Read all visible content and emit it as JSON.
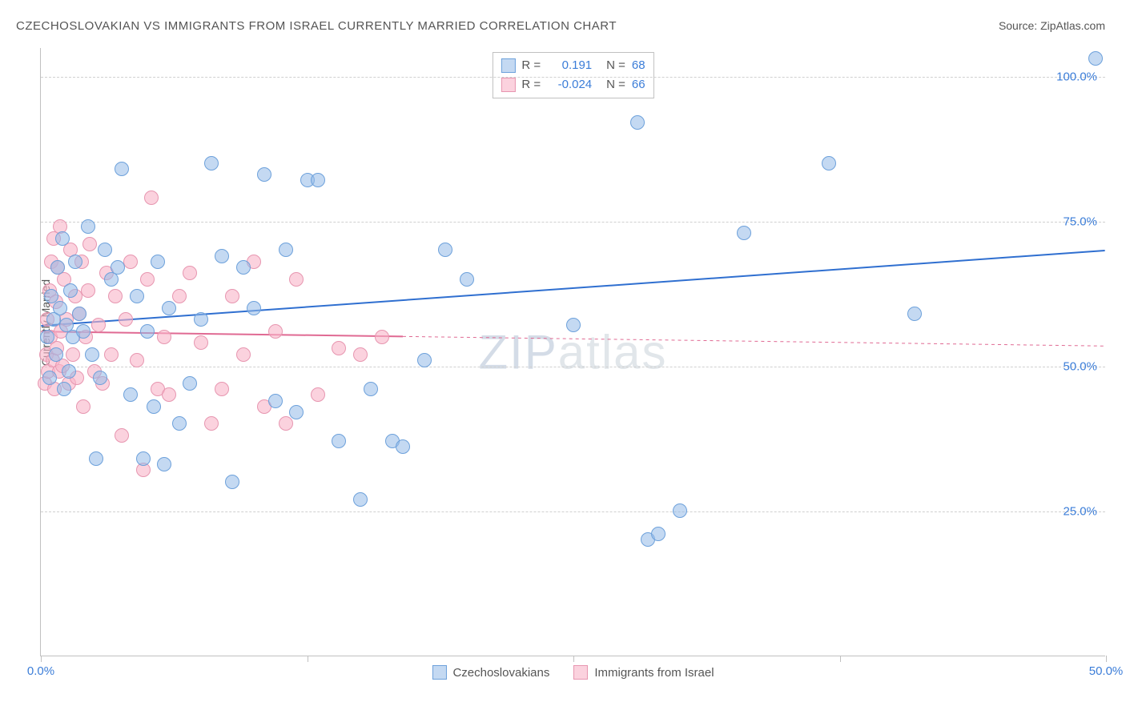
{
  "title": "CZECHOSLOVAKIAN VS IMMIGRANTS FROM ISRAEL CURRENTLY MARRIED CORRELATION CHART",
  "source_label": "Source: ZipAtlas.com",
  "ylabel": "Currently Married",
  "watermark": {
    "zip": "ZIP",
    "atlas": "atlas"
  },
  "chart": {
    "type": "scatter",
    "xlim": [
      0,
      50
    ],
    "ylim": [
      0,
      105
    ],
    "xticks": [
      0,
      12.5,
      25,
      37.5,
      50
    ],
    "xtick_labels": [
      "0.0%",
      "",
      "",
      "",
      "50.0%"
    ],
    "yticks": [
      25,
      50,
      75,
      100
    ],
    "ytick_labels": [
      "25.0%",
      "50.0%",
      "75.0%",
      "100.0%"
    ],
    "ytick_color": "#3b7dd8",
    "grid_color": "#d0d0d0",
    "background_color": "#ffffff",
    "marker_radius": 9,
    "marker_stroke_width": 1.2,
    "trend_line_width": 2
  },
  "series": [
    {
      "name": "Czechoslovakians",
      "fill": "rgba(147,185,232,0.55)",
      "stroke": "#6da1db",
      "trend_color": "#2f6fd0",
      "R": "0.191",
      "N": "68",
      "trend": {
        "x1": 0,
        "y1": 57,
        "x2": 50,
        "y2": 70,
        "solid_to_x": 50
      },
      "points": [
        [
          0.3,
          55
        ],
        [
          0.4,
          48
        ],
        [
          0.5,
          62
        ],
        [
          0.6,
          58
        ],
        [
          0.7,
          52
        ],
        [
          0.8,
          67
        ],
        [
          0.9,
          60
        ],
        [
          1.0,
          72
        ],
        [
          1.1,
          46
        ],
        [
          1.2,
          57
        ],
        [
          1.3,
          49
        ],
        [
          1.4,
          63
        ],
        [
          1.5,
          55
        ],
        [
          1.6,
          68
        ],
        [
          1.8,
          59
        ],
        [
          2.0,
          56
        ],
        [
          2.2,
          74
        ],
        [
          2.4,
          52
        ],
        [
          2.6,
          34
        ],
        [
          2.8,
          48
        ],
        [
          3.0,
          70
        ],
        [
          3.3,
          65
        ],
        [
          3.6,
          67
        ],
        [
          3.8,
          84
        ],
        [
          4.2,
          45
        ],
        [
          4.5,
          62
        ],
        [
          4.8,
          34
        ],
        [
          5.0,
          56
        ],
        [
          5.3,
          43
        ],
        [
          5.5,
          68
        ],
        [
          5.8,
          33
        ],
        [
          6.0,
          60
        ],
        [
          6.5,
          40
        ],
        [
          7.0,
          47
        ],
        [
          7.5,
          58
        ],
        [
          8.0,
          85
        ],
        [
          8.5,
          69
        ],
        [
          9.0,
          30
        ],
        [
          9.5,
          67
        ],
        [
          10.0,
          60
        ],
        [
          10.5,
          83
        ],
        [
          11.0,
          44
        ],
        [
          11.5,
          70
        ],
        [
          12.0,
          42
        ],
        [
          12.5,
          82
        ],
        [
          13.0,
          82
        ],
        [
          14.0,
          37
        ],
        [
          15.0,
          27
        ],
        [
          15.5,
          46
        ],
        [
          16.5,
          37
        ],
        [
          17.0,
          36
        ],
        [
          18.0,
          51
        ],
        [
          19.0,
          70
        ],
        [
          20.0,
          65
        ],
        [
          25.0,
          57
        ],
        [
          28.0,
          92
        ],
        [
          28.5,
          20
        ],
        [
          29.0,
          21
        ],
        [
          30.0,
          25
        ],
        [
          33.0,
          73
        ],
        [
          37.0,
          85
        ],
        [
          41.0,
          59
        ],
        [
          49.5,
          103
        ]
      ]
    },
    {
      "name": "Immigrants from Israel",
      "fill": "rgba(248,180,200,0.6)",
      "stroke": "#e796b0",
      "trend_color": "#e06a93",
      "R": "-0.024",
      "N": "66",
      "trend": {
        "x1": 0,
        "y1": 56,
        "x2": 50,
        "y2": 53.5,
        "solid_to_x": 17
      },
      "points": [
        [
          0.2,
          47
        ],
        [
          0.25,
          52
        ],
        [
          0.3,
          58
        ],
        [
          0.35,
          49
        ],
        [
          0.4,
          63
        ],
        [
          0.45,
          55
        ],
        [
          0.5,
          68
        ],
        [
          0.55,
          51
        ],
        [
          0.6,
          72
        ],
        [
          0.65,
          46
        ],
        [
          0.7,
          61
        ],
        [
          0.75,
          53
        ],
        [
          0.8,
          67
        ],
        [
          0.85,
          49
        ],
        [
          0.9,
          74
        ],
        [
          0.95,
          56
        ],
        [
          1.0,
          50
        ],
        [
          1.1,
          65
        ],
        [
          1.2,
          58
        ],
        [
          1.3,
          47
        ],
        [
          1.4,
          70
        ],
        [
          1.5,
          52
        ],
        [
          1.6,
          62
        ],
        [
          1.7,
          48
        ],
        [
          1.8,
          59
        ],
        [
          1.9,
          68
        ],
        [
          2.0,
          43
        ],
        [
          2.1,
          55
        ],
        [
          2.2,
          63
        ],
        [
          2.3,
          71
        ],
        [
          2.5,
          49
        ],
        [
          2.7,
          57
        ],
        [
          2.9,
          47
        ],
        [
          3.1,
          66
        ],
        [
          3.3,
          52
        ],
        [
          3.5,
          62
        ],
        [
          3.8,
          38
        ],
        [
          4.0,
          58
        ],
        [
          4.2,
          68
        ],
        [
          4.5,
          51
        ],
        [
          4.8,
          32
        ],
        [
          5.0,
          65
        ],
        [
          5.2,
          79
        ],
        [
          5.5,
          46
        ],
        [
          5.8,
          55
        ],
        [
          6.0,
          45
        ],
        [
          6.5,
          62
        ],
        [
          7.0,
          66
        ],
        [
          7.5,
          54
        ],
        [
          8.0,
          40
        ],
        [
          8.5,
          46
        ],
        [
          9.0,
          62
        ],
        [
          9.5,
          52
        ],
        [
          10.0,
          68
        ],
        [
          10.5,
          43
        ],
        [
          11.0,
          56
        ],
        [
          11.5,
          40
        ],
        [
          12.0,
          65
        ],
        [
          13.0,
          45
        ],
        [
          14.0,
          53
        ],
        [
          15.0,
          52
        ],
        [
          16.0,
          55
        ]
      ]
    }
  ],
  "legend_top": {
    "R_label": "R =",
    "N_label": "N =",
    "value_color": "#3b7dd8",
    "label_color": "#555"
  },
  "legend_bottom": [
    {
      "label": "Czechoslovakians",
      "fill": "rgba(147,185,232,0.55)",
      "stroke": "#6da1db"
    },
    {
      "label": "Immigrants from Israel",
      "fill": "rgba(248,180,200,0.6)",
      "stroke": "#e796b0"
    }
  ]
}
